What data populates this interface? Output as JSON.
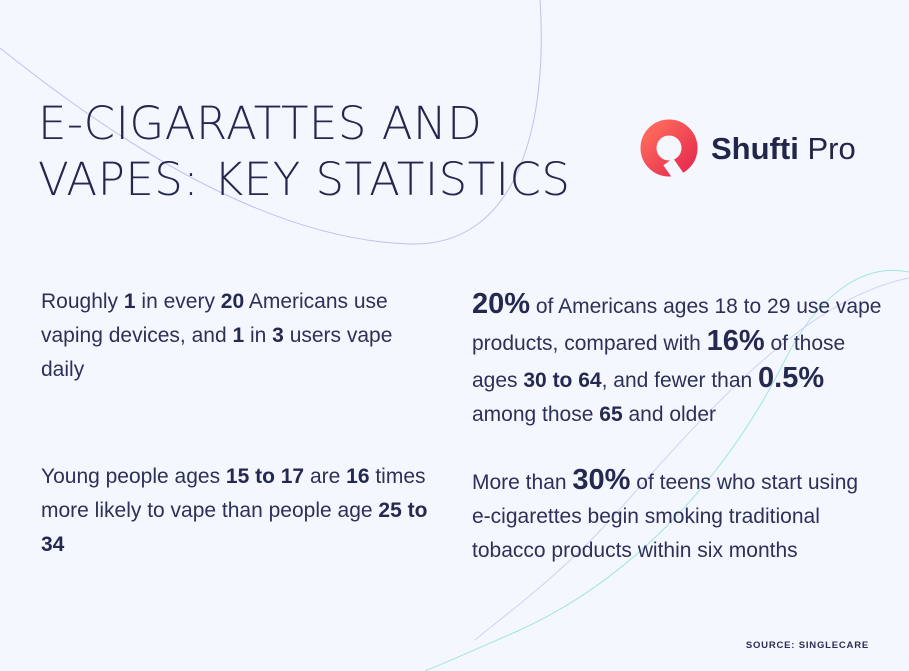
{
  "title": {
    "line1": "E-CIGARATTES AND",
    "line2": "VAPES: KEY STATISTICS"
  },
  "logo": {
    "icon": "shufti-pro-ring-logo-icon",
    "word1": "Shufti",
    "word2": "Pro",
    "colors": {
      "ring_start": "#ff5a55",
      "ring_end": "#e8324f",
      "text": "#23264b"
    }
  },
  "stats": {
    "s1": {
      "t1": "Roughly ",
      "b1": "1",
      "t2": " in every ",
      "b2": "20",
      "t3": " Americans use vaping devices, and ",
      "b3": "1",
      "t4": " in ",
      "b4": "3",
      "t5": " users vape daily"
    },
    "s2": {
      "b1": "20%",
      "t1": " of Americans ages 18 to 29 use vape products, compared with ",
      "b2": "16%",
      "t2": " of those ages ",
      "b3": "30 to 64",
      "t3": ", and fewer than ",
      "b4": "0.5%",
      "t4": " among those ",
      "b5": "65",
      "t5": " and older"
    },
    "s3": {
      "t1": "Young people ages ",
      "b1": "15 to 17",
      "t2": " are ",
      "b2": "16",
      "t3": " times more likely to vape than people age ",
      "b3": "25 to 34"
    },
    "s4": {
      "t1": "More than ",
      "b1": "30%",
      "t2": " of teens who start using e-cigarettes begin smoking traditional tobacco products within six months"
    }
  },
  "source": "SOURCE: SINGLECARE",
  "colors": {
    "background": "#f5f7fe",
    "text": "#2d3057",
    "deco_line_purple": "#b9b6ec",
    "deco_line_teal": "#8fe3de"
  }
}
